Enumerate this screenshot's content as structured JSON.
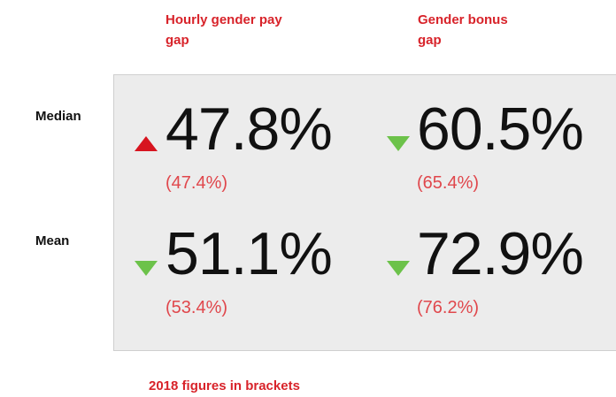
{
  "headers": [
    "Hourly gender pay gap",
    "Gender bonus gap"
  ],
  "rows": [
    {
      "label": "Median",
      "cells": [
        {
          "value": "47.8%",
          "previous": "(47.4%)",
          "trend": "up"
        },
        {
          "value": "60.5%",
          "previous": "(65.4%)",
          "trend": "down"
        }
      ]
    },
    {
      "label": "Mean",
      "cells": [
        {
          "value": "51.1%",
          "previous": "(53.4%)",
          "trend": "down"
        },
        {
          "value": "72.9%",
          "previous": "(76.2%)",
          "trend": "down"
        }
      ]
    }
  ],
  "footer": "2018 figures in brackets"
}
